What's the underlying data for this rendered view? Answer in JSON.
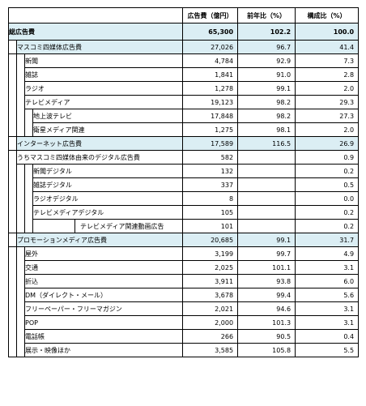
{
  "header": {
    "col_item": "",
    "col_spend": "広告費（億円）",
    "col_yoy": "前年比（%）",
    "col_share": "構成比（%）"
  },
  "rows": [
    {
      "label": "総広告費",
      "spend": "65,300",
      "yoy": "102.2",
      "share": "100.0"
    },
    {
      "label": "マスコミ四媒体広告費",
      "spend": "27,026",
      "yoy": "96.7",
      "share": "41.4"
    },
    {
      "label": "新聞",
      "spend": "4,784",
      "yoy": "92.9",
      "share": "7.3"
    },
    {
      "label": "雑誌",
      "spend": "1,841",
      "yoy": "91.0",
      "share": "2.8"
    },
    {
      "label": "ラジオ",
      "spend": "1,278",
      "yoy": "99.1",
      "share": "2.0"
    },
    {
      "label": "テレビメディア",
      "spend": "19,123",
      "yoy": "98.2",
      "share": "29.3"
    },
    {
      "label": "地上波テレビ",
      "spend": "17,848",
      "yoy": "98.2",
      "share": "27.3"
    },
    {
      "label": "衛星メディア関連",
      "spend": "1,275",
      "yoy": "98.1",
      "share": "2.0"
    },
    {
      "label": "インターネット広告費",
      "spend": "17,589",
      "yoy": "116.5",
      "share": "26.9"
    },
    {
      "label": "うちマスコミ四媒体由来のデジタル広告費",
      "spend": "582",
      "yoy": "",
      "share": "0.9"
    },
    {
      "label": "新聞デジタル",
      "spend": "132",
      "yoy": "",
      "share": "0.2"
    },
    {
      "label": "雑誌デジタル",
      "spend": "337",
      "yoy": "",
      "share": "0.5"
    },
    {
      "label": "ラジオデジタル",
      "spend": "8",
      "yoy": "",
      "share": "0.0"
    },
    {
      "label": "テレビメディアデジタル",
      "spend": "105",
      "yoy": "",
      "share": "0.2"
    },
    {
      "label": "テレビメディア関連動画広告",
      "spend": "101",
      "yoy": "",
      "share": "0.2"
    },
    {
      "label": "プロモーションメディア広告費",
      "spend": "20,685",
      "yoy": "99.1",
      "share": "31.7"
    },
    {
      "label": "屋外",
      "spend": "3,199",
      "yoy": "99.7",
      "share": "4.9"
    },
    {
      "label": "交通",
      "spend": "2,025",
      "yoy": "101.1",
      "share": "3.1"
    },
    {
      "label": "折込",
      "spend": "3,911",
      "yoy": "93.8",
      "share": "6.0"
    },
    {
      "label": "DM（ダイレクト・メール）",
      "spend": "3,678",
      "yoy": "99.4",
      "share": "5.6"
    },
    {
      "label": "フリーペーパー・フリーマガジン",
      "spend": "2,021",
      "yoy": "94.6",
      "share": "3.1"
    },
    {
      "label": "POP",
      "spend": "2,000",
      "yoy": "101.3",
      "share": "3.1"
    },
    {
      "label": "電話帳",
      "spend": "266",
      "yoy": "90.5",
      "share": "0.4"
    },
    {
      "label": "展示・映像ほか",
      "spend": "3,585",
      "yoy": "105.8",
      "share": "5.5"
    }
  ]
}
